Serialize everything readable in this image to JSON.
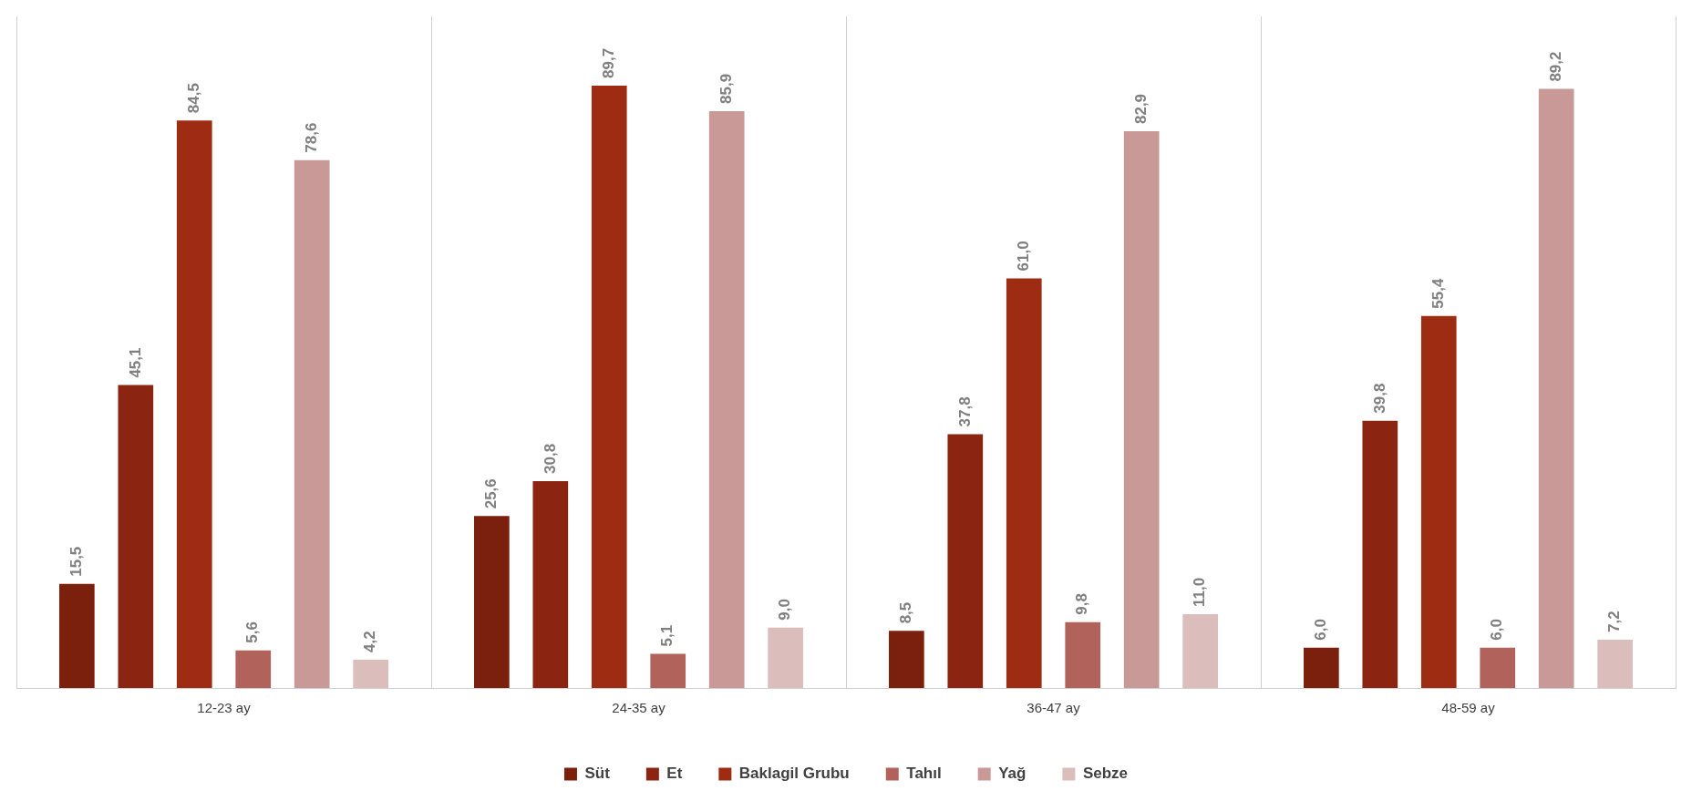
{
  "chart_data": {
    "type": "bar",
    "categories": [
      "12-23 ay",
      "24-35 ay",
      "36-47 ay",
      "48-59 ay"
    ],
    "ylim": [
      0,
      100
    ],
    "grid": "x",
    "legend": "bottom",
    "series": [
      {
        "name": "Süt",
        "color": "#7b200c",
        "values": [
          15.5,
          25.6,
          8.5,
          6.0
        ],
        "value_labels": [
          "15,5",
          "25,6",
          "8,5",
          "6,0"
        ]
      },
      {
        "name": "Et",
        "color": "#8b2410",
        "values": [
          45.1,
          30.8,
          37.8,
          39.8
        ],
        "value_labels": [
          "45,1",
          "30,8",
          "37,8",
          "39,8"
        ]
      },
      {
        "name": "Baklagil Grubu",
        "color": "#9e2c12",
        "values": [
          84.5,
          89.7,
          61.0,
          55.4
        ],
        "value_labels": [
          "84,5",
          "89,7",
          "61,0",
          "55,4"
        ]
      },
      {
        "name": "Tahıl",
        "color": "#b0625b",
        "values": [
          5.6,
          5.1,
          9.8,
          6.0
        ],
        "value_labels": [
          "5,6",
          "5,1",
          "9,8",
          "6,0"
        ]
      },
      {
        "name": "Yağ",
        "color": "#c89997",
        "values": [
          78.6,
          85.9,
          82.9,
          89.2
        ],
        "value_labels": [
          "78,6",
          "85,9",
          "82,9",
          "89,2"
        ]
      },
      {
        "name": "Sebze",
        "color": "#dbbdbc",
        "values": [
          4.2,
          9.0,
          11.0,
          7.2
        ],
        "value_labels": [
          "4,2",
          "9,0",
          "11,0",
          "7,2"
        ]
      }
    ]
  }
}
